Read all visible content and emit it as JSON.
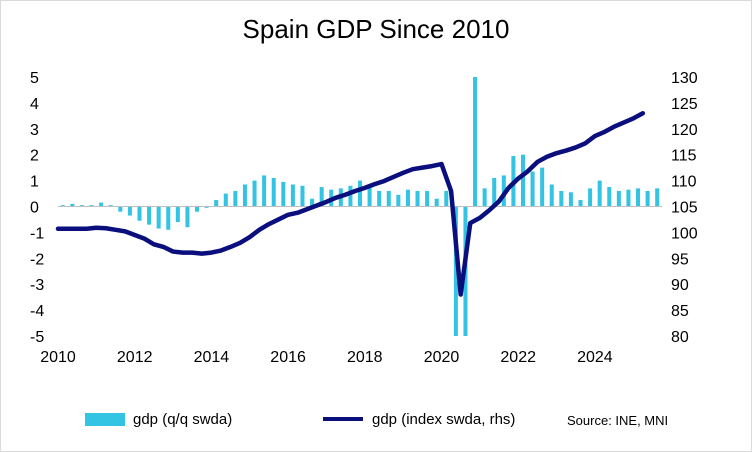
{
  "chart_data": {
    "type": "bar+line",
    "title": "Spain GDP Since 2010",
    "x_tick_labels": [
      "2010",
      "2012",
      "2014",
      "2016",
      "2018",
      "2020",
      "2022",
      "2024"
    ],
    "x_range": [
      2010,
      2025.75
    ],
    "left_axis": {
      "ticks": [
        "5",
        "4",
        "3",
        "2",
        "1",
        "0",
        "-1",
        "-2",
        "-3",
        "-4",
        "-5"
      ],
      "range": [
        -5,
        5
      ]
    },
    "right_axis": {
      "ticks": [
        "130",
        "125",
        "120",
        "115",
        "110",
        "105",
        "100",
        "95",
        "90",
        "85",
        "80"
      ],
      "range": [
        80,
        130
      ]
    },
    "series": [
      {
        "name": "gdp (q/q swda)",
        "kind": "bar",
        "axis": "left",
        "color": "#33c3e3",
        "start": 2010.0,
        "step": 0.25,
        "values": [
          0.05,
          0.1,
          0.05,
          0.05,
          0.15,
          0.05,
          -0.2,
          -0.35,
          -0.55,
          -0.7,
          -0.85,
          -0.9,
          -0.6,
          -0.8,
          -0.2,
          -0.05,
          0.25,
          0.5,
          0.6,
          0.85,
          1.0,
          1.2,
          1.1,
          0.95,
          0.85,
          0.8,
          0.3,
          0.75,
          0.65,
          0.7,
          0.8,
          1.0,
          0.75,
          0.6,
          0.6,
          0.45,
          0.65,
          0.6,
          0.6,
          0.3,
          0.6,
          -5.0,
          -5.0,
          5.0,
          0.7,
          1.1,
          1.2,
          1.95,
          2.0,
          1.35,
          1.5,
          0.85,
          0.6,
          0.55,
          0.25,
          0.7,
          1.0,
          0.75,
          0.6,
          0.65,
          0.7,
          0.6,
          0.7
        ]
      },
      {
        "name": "gdp (index swda, rhs)",
        "kind": "line",
        "axis": "right",
        "color": "#0a0f7d",
        "start": 2010.0,
        "step": 0.25,
        "values": [
          100.7,
          100.7,
          100.7,
          100.7,
          100.9,
          100.8,
          100.5,
          100.2,
          99.5,
          98.8,
          97.7,
          97.2,
          96.3,
          96.1,
          96.1,
          95.9,
          96.1,
          96.5,
          97.2,
          98.0,
          99.1,
          100.5,
          101.6,
          102.5,
          103.4,
          103.8,
          104.5,
          105.2,
          105.9,
          106.7,
          107.3,
          108.0,
          108.6,
          109.3,
          109.9,
          110.7,
          111.5,
          112.2,
          112.5,
          112.8,
          113.2,
          108.0,
          88.0,
          101.8,
          102.8,
          104.3,
          106.0,
          108.6,
          110.4,
          111.8,
          113.6,
          114.6,
          115.3,
          115.8,
          116.4,
          117.2,
          118.6,
          119.4,
          120.4,
          121.2,
          122.0,
          123.0
        ]
      }
    ],
    "legend": [
      {
        "label": "gdp (q/q swda)",
        "symbol": "bar"
      },
      {
        "label": "gdp (index swda, rhs)",
        "symbol": "line"
      }
    ],
    "legend_position": "bottom",
    "source": "Source: INE, MNI"
  }
}
